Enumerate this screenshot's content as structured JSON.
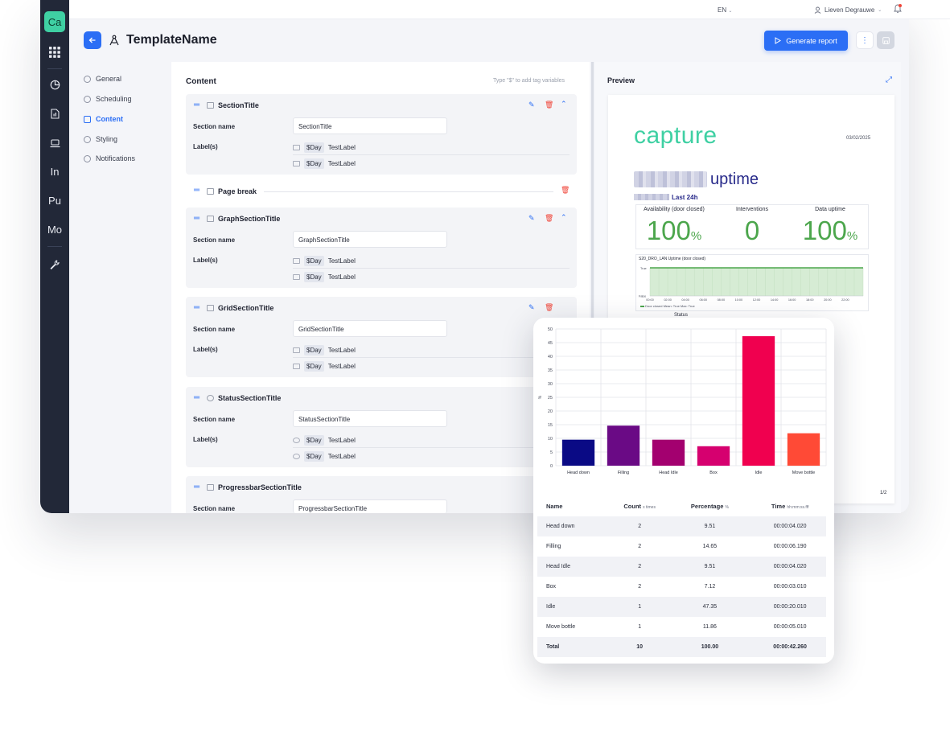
{
  "rail": {
    "logo": "Ca",
    "text_items": [
      "In",
      "Pu",
      "Mo"
    ]
  },
  "topbar": {
    "language": "EN",
    "user_name": "Lieven Degrauwe"
  },
  "header": {
    "title": "TemplateName",
    "generate_label": "Generate report"
  },
  "side_nav": [
    {
      "label": "General",
      "active": false
    },
    {
      "label": "Scheduling",
      "active": false
    },
    {
      "label": "Content",
      "active": true
    },
    {
      "label": "Styling",
      "active": false
    },
    {
      "label": "Notifications",
      "active": false
    }
  ],
  "content": {
    "title": "Content",
    "hint": "Type \"$\" to add tag variables",
    "field_section_name": "Section name",
    "field_labels": "Label(s)",
    "tag": "$Day",
    "label_value": "TestLabel",
    "page_break": "Page break",
    "sections": [
      {
        "title": "SectionTitle",
        "value": "SectionTitle"
      },
      {
        "title": "GraphSectionTitle",
        "value": "GraphSectionTitle"
      },
      {
        "title": "GridSectionTitle",
        "value": "GridSectionTitle"
      },
      {
        "title": "StatusSectionTitle",
        "value": "StatusSectionTitle"
      },
      {
        "title": "ProgressbarSectionTitle",
        "value": "ProgressbarSectionTitle"
      }
    ]
  },
  "preview": {
    "title": "Preview",
    "brand": "capture",
    "date": "03/02/2025",
    "uptime_word": "uptime",
    "period": "Last 24h",
    "kpis": [
      {
        "label": "Availability (door closed)",
        "value": "100",
        "unit": "%"
      },
      {
        "label": "Interventions",
        "value": "0",
        "unit": ""
      },
      {
        "label": "Data uptime",
        "value": "100",
        "unit": "%"
      }
    ],
    "mini_chart_title": "S20_DRO_LAN Uptime (door closed)",
    "mini_true": "True",
    "mini_false": "False",
    "mini_ticks": [
      "00:00",
      "02:00",
      "04:00",
      "06:00",
      "08:00",
      "10:00",
      "12:00",
      "14:00",
      "16:00",
      "18:00",
      "20:00",
      "22:00"
    ],
    "mini_legend": "Door closed  Mean: True  Max: True",
    "status_label": "Status",
    "page_num": "1/2"
  },
  "chart_data": {
    "type": "bar",
    "categories": [
      "Head down",
      "Filling",
      "Head Idle",
      "Box",
      "Idle",
      "Move bottle"
    ],
    "values": [
      9.51,
      14.65,
      9.51,
      7.12,
      47.35,
      11.86
    ],
    "colors": [
      "#0a0a85",
      "#6a0a85",
      "#a3006f",
      "#d6006f",
      "#f0004f",
      "#ff4a36"
    ],
    "ylabel": "%",
    "ylim": [
      0,
      50
    ],
    "yticks": [
      0,
      5,
      10,
      15,
      20,
      25,
      30,
      35,
      40,
      45,
      50
    ],
    "grid": true
  },
  "table": {
    "headers": {
      "name": "Name",
      "count": "Count",
      "count_unit": "x times",
      "pct": "Percentage",
      "pct_unit": "%",
      "time": "Time",
      "time_unit": "hh:mm:ss.fff"
    },
    "rows": [
      {
        "name": "Head down",
        "count": "2",
        "pct": "9.51",
        "time": "00:00:04.020"
      },
      {
        "name": "Filling",
        "count": "2",
        "pct": "14.65",
        "time": "00:00:06.190"
      },
      {
        "name": "Head Idle",
        "count": "2",
        "pct": "9.51",
        "time": "00:00:04.020"
      },
      {
        "name": "Box",
        "count": "2",
        "pct": "7.12",
        "time": "00:00:03.010"
      },
      {
        "name": "Idle",
        "count": "1",
        "pct": "47.35",
        "time": "00:00:20.010"
      },
      {
        "name": "Move bottle",
        "count": "1",
        "pct": "11.86",
        "time": "00:00:05.010"
      }
    ],
    "total": {
      "name": "Total",
      "count": "10",
      "pct": "100.00",
      "time": "00:00:42.260"
    }
  },
  "colors": {
    "accent": "#2b6ef5",
    "brand": "#3fd0a3",
    "rail": "#222838",
    "kpi_green": "#4ca64c",
    "danger": "#f04438"
  }
}
